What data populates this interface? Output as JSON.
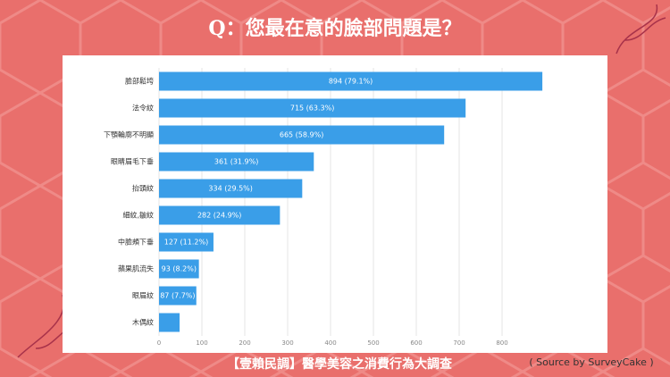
{
  "chart_data": {
    "type": "hbar",
    "title": "Q：您最在意的臉部問題是？",
    "caption": "【壹賴民調】醫學美容之消費行為大調查",
    "source": "( Source by SurveyCake )",
    "categories": [
      "臉部鬆垮",
      "法令紋",
      "下顎輪廓不明顯",
      "眼睛眉毛下垂",
      "抬頭紋",
      "細紋,皺紋",
      "中臉頰下垂",
      "蘋果肌流失",
      "眼眉紋",
      "木偶紋"
    ],
    "values": [
      894,
      715,
      665,
      361,
      334,
      282,
      127,
      93,
      87,
      48
    ],
    "value_labels": [
      "894 (79.1%)",
      "715 (63.3%)",
      "665 (58.9%)",
      "361 (31.9%)",
      "334 (29.5%)",
      "282 (24.9%)",
      "127 (11.2%)",
      "93 (8.2%)",
      "87 (7.7%)",
      null
    ],
    "color": "#3a9ee8",
    "xlim": [
      0,
      900
    ],
    "xticks": [
      0,
      100,
      200,
      300,
      400,
      500,
      600,
      700,
      800
    ],
    "grid": true
  }
}
